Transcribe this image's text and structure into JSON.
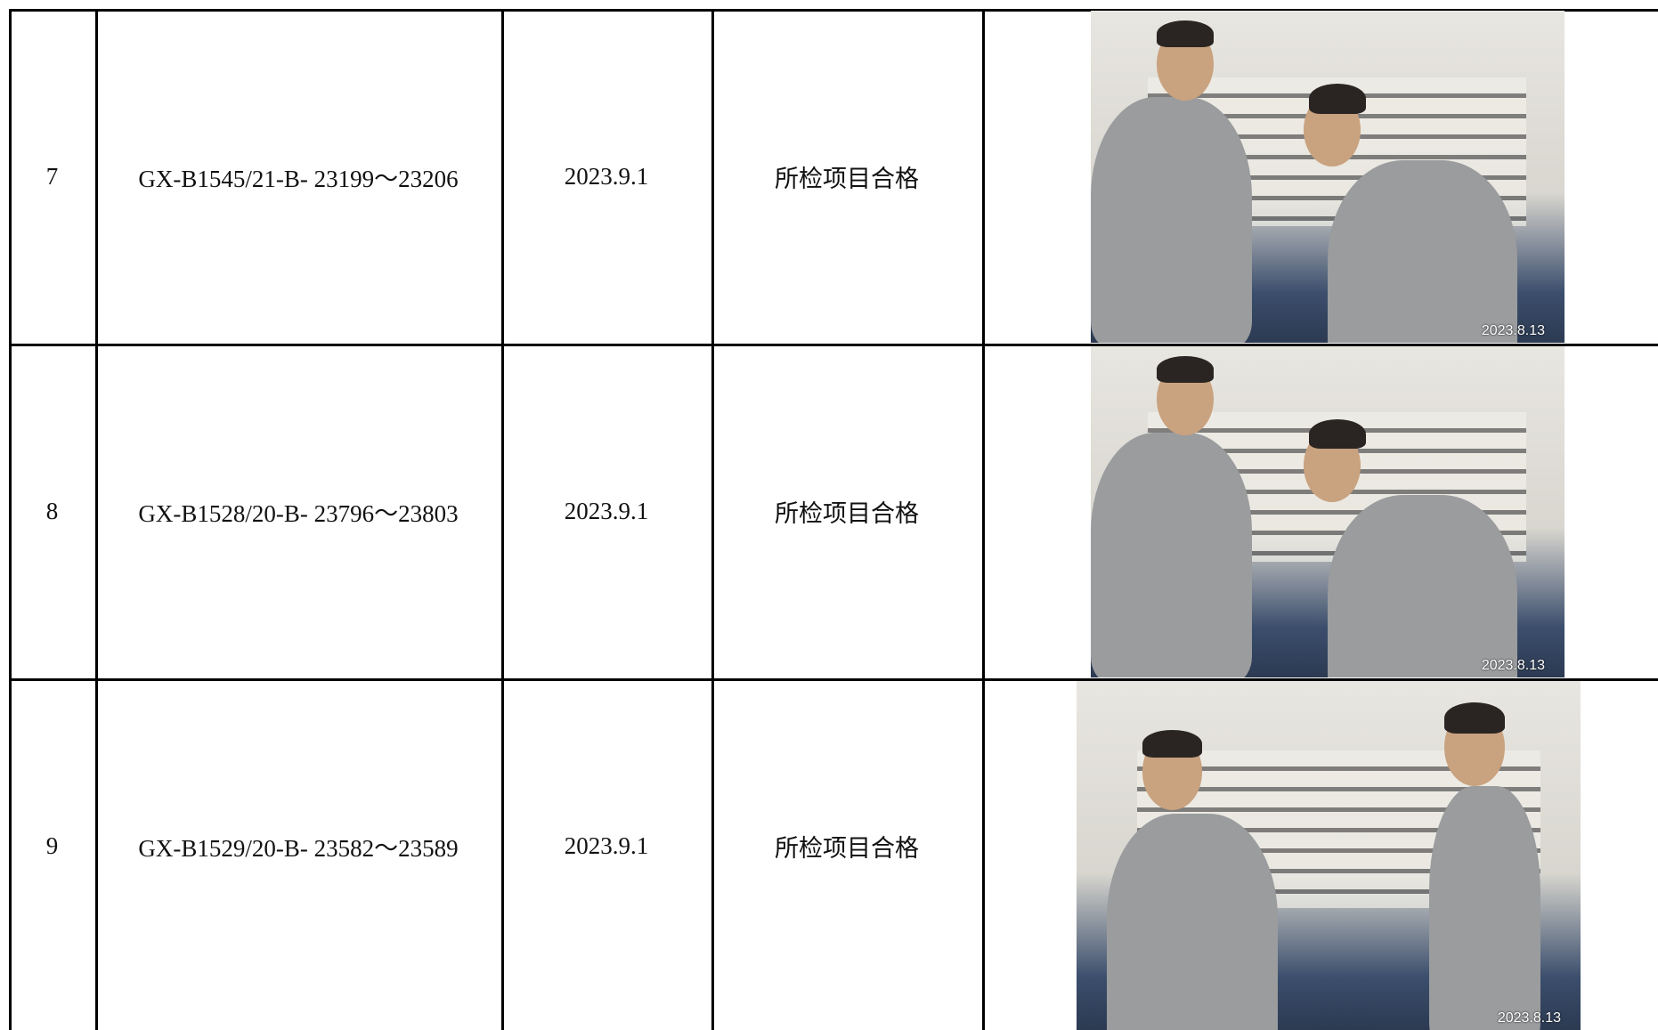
{
  "table": {
    "rows": [
      {
        "no": "7",
        "code": "GX-B1545/21-B- 23199～23206",
        "date": "2023.9.1",
        "result": "所检项目合格",
        "photo_date": "2023.8.13"
      },
      {
        "no": "8",
        "code": "GX-B1528/20-B- 23796～23803",
        "date": "2023.9.1",
        "result": "所检项目合格",
        "photo_date": "2023.8.13"
      },
      {
        "no": "9",
        "code": "GX-B1529/20-B- 23582～23589",
        "date": "2023.9.1",
        "result": "所检项目合格",
        "photo_date": "2023.8.13"
      }
    ]
  }
}
